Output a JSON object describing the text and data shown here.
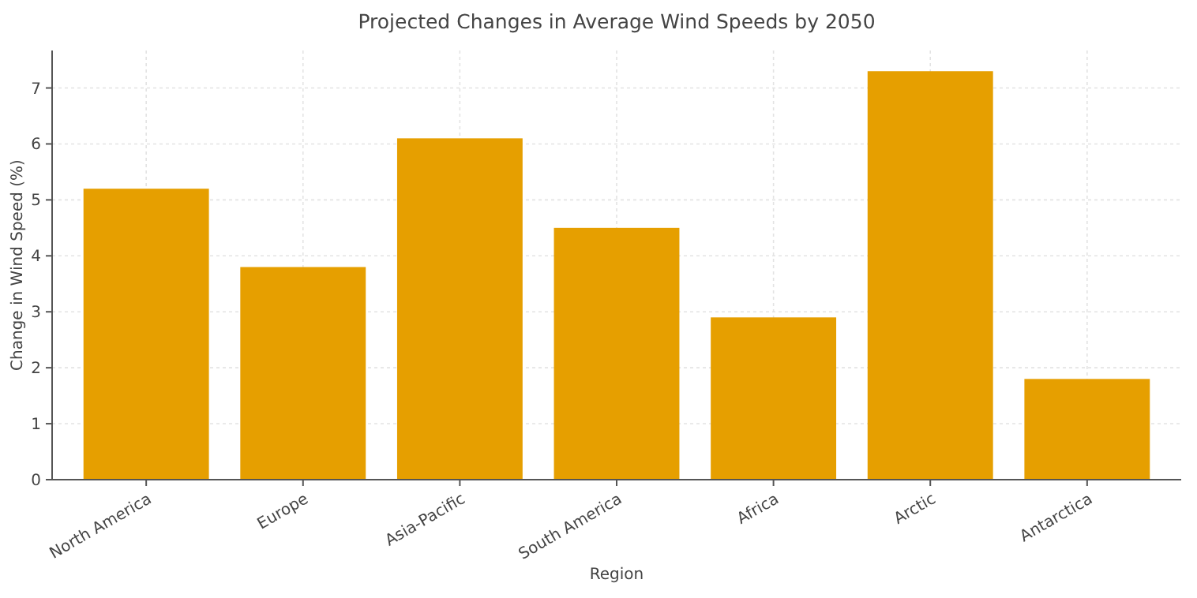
{
  "chart_data": {
    "type": "bar",
    "title": "Projected Changes in Average Wind Speeds by 2050",
    "xlabel": "Region",
    "ylabel": "Change in Wind Speed (%)",
    "categories": [
      "North America",
      "Europe",
      "Asia-Pacific",
      "South America",
      "Africa",
      "Arctic",
      "Antarctica"
    ],
    "values": [
      5.2,
      3.8,
      6.1,
      4.5,
      2.9,
      7.3,
      1.8
    ],
    "color": "#e69f00",
    "ylim": [
      0,
      7.67
    ],
    "yticks": [
      0,
      1,
      2,
      3,
      4,
      5,
      6,
      7
    ],
    "grid": true
  }
}
